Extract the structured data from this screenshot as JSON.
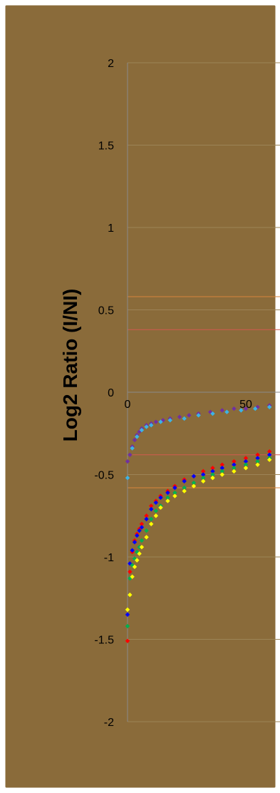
{
  "colors": {
    "background": "#8a6b3a",
    "border": "#ffffff",
    "gridline": "#9c8457",
    "axis": "#8a8a8a",
    "text": "#000000",
    "threshold_orange": "#d8843c",
    "threshold_red": "#d15a4e"
  },
  "chart_data": {
    "type": "scatter",
    "title": "",
    "xlabel": "",
    "ylabel": "Log2 Ratio (I/NI)",
    "xlim": [
      0,
      60
    ],
    "ylim": [
      -2,
      2
    ],
    "x_ticks": [
      "0",
      "50"
    ],
    "x_tick_values": [
      0,
      50
    ],
    "y_ticks": [
      "2",
      "1.5",
      "1",
      "0.5",
      "0",
      "-0.5",
      "-1",
      "-1.5",
      "-2"
    ],
    "y_tick_values": [
      2,
      1.5,
      1,
      0.5,
      0,
      -0.5,
      -1,
      -1.5,
      -2
    ],
    "grid": true,
    "legend": "none",
    "reference_lines": [
      {
        "y": 0.58,
        "color": "#d8843c"
      },
      {
        "y": 0.38,
        "color": "#d15a4e"
      },
      {
        "y": -0.38,
        "color": "#d15a4e"
      },
      {
        "y": -0.58,
        "color": "#d8843c"
      }
    ],
    "series": [
      {
        "color": "#7030a0",
        "x": [
          0,
          1,
          2,
          3,
          4,
          5,
          6,
          8,
          10,
          12,
          15,
          18,
          22,
          26,
          30,
          35,
          40,
          45,
          50,
          55,
          60
        ],
        "y": [
          -0.42,
          -0.38,
          -0.33,
          -0.29,
          -0.26,
          -0.24,
          -0.22,
          -0.2,
          -0.19,
          -0.18,
          -0.17,
          -0.16,
          -0.15,
          -0.14,
          -0.13,
          -0.12,
          -0.11,
          -0.1,
          -0.1,
          -0.09,
          -0.08
        ]
      },
      {
        "color": "#3cb4e6",
        "x": [
          0,
          2,
          4,
          6,
          8,
          10,
          14,
          18,
          24,
          30,
          36,
          42,
          48,
          54,
          60
        ],
        "y": [
          -0.52,
          -0.34,
          -0.27,
          -0.23,
          -0.21,
          -0.2,
          -0.18,
          -0.17,
          -0.16,
          -0.14,
          -0.13,
          -0.12,
          -0.11,
          -0.1,
          -0.09
        ]
      },
      {
        "color": "#ff0000",
        "x": [
          0,
          1,
          2,
          3,
          4,
          5,
          6,
          8,
          10,
          12,
          14,
          17,
          20,
          24,
          28,
          32,
          36,
          40,
          45,
          50,
          55,
          60
        ],
        "y": [
          -1.51,
          -1.09,
          -0.97,
          -0.9,
          -0.86,
          -0.83,
          -0.8,
          -0.75,
          -0.69,
          -0.66,
          -0.63,
          -0.6,
          -0.57,
          -0.53,
          -0.51,
          -0.48,
          -0.46,
          -0.44,
          -0.42,
          -0.4,
          -0.38,
          -0.36
        ]
      },
      {
        "color": "#0000ff",
        "x": [
          0,
          1,
          2,
          3,
          4,
          5,
          6,
          8,
          10,
          12,
          14,
          17,
          20,
          24,
          28,
          32,
          36,
          40,
          45,
          50,
          55,
          60
        ],
        "y": [
          -1.35,
          -1.04,
          -0.96,
          -0.91,
          -0.87,
          -0.84,
          -0.82,
          -0.77,
          -0.71,
          -0.67,
          -0.64,
          -0.61,
          -0.58,
          -0.54,
          -0.51,
          -0.5,
          -0.48,
          -0.46,
          -0.44,
          -0.42,
          -0.4,
          -0.38
        ]
      },
      {
        "color": "#00b050",
        "x": [
          0,
          1,
          2,
          3,
          4,
          5,
          6,
          8,
          10,
          12,
          14,
          17,
          20,
          24,
          28,
          32,
          36,
          40,
          45,
          50,
          55,
          60
        ],
        "y": [
          -1.42,
          -1.13,
          -1.05,
          -1.01,
          -0.97,
          -0.94,
          -0.9,
          -0.84,
          -0.77,
          -0.72,
          -0.69,
          -0.64,
          -0.61,
          -0.58,
          -0.55,
          -0.52,
          -0.5,
          -0.48,
          -0.46,
          -0.44,
          -0.42,
          -0.4
        ]
      },
      {
        "color": "#ffff00",
        "x": [
          0,
          1,
          2,
          3,
          4,
          5,
          6,
          8,
          10,
          12,
          14,
          17,
          20,
          24,
          28,
          32,
          36,
          40,
          45,
          50,
          55,
          60
        ],
        "y": [
          -1.32,
          -1.23,
          -1.12,
          -1.06,
          -1.02,
          -0.98,
          -0.94,
          -0.88,
          -0.8,
          -0.75,
          -0.7,
          -0.66,
          -0.63,
          -0.6,
          -0.57,
          -0.54,
          -0.52,
          -0.5,
          -0.48,
          -0.46,
          -0.44,
          -0.41
        ]
      }
    ]
  }
}
